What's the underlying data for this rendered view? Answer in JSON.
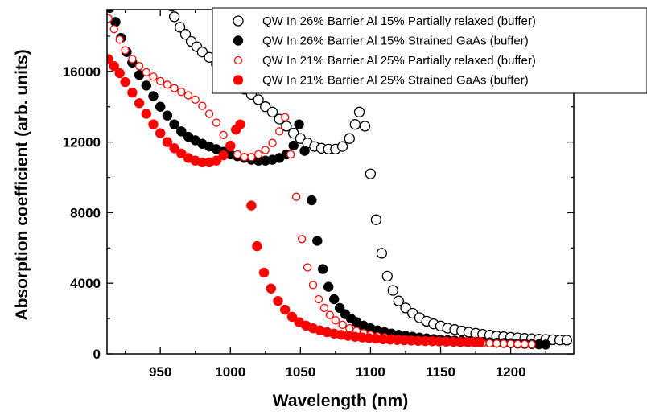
{
  "chart_data": {
    "type": "scatter",
    "title": "",
    "xlabel": "Wavelength (nm)",
    "ylabel": "Absorption coefficient (arb. units)",
    "xlim": [
      912,
      1245
    ],
    "ylim": [
      0,
      19500
    ],
    "xticks": [
      950,
      1000,
      1050,
      1100,
      1150,
      1200
    ],
    "yticks": [
      0,
      4000,
      8000,
      12000,
      16000
    ],
    "legend_position": "top-right",
    "series": [
      {
        "name": "QW In 26% Barrier Al 15% Partially relaxed (buffer)",
        "color": "#000000",
        "marker": "open-circle",
        "points": [
          [
            958,
            19700
          ],
          [
            960,
            19100
          ],
          [
            964,
            18500
          ],
          [
            968,
            18100
          ],
          [
            972,
            17700
          ],
          [
            976,
            17400
          ],
          [
            980,
            17100
          ],
          [
            985,
            16800
          ],
          [
            990,
            16400
          ],
          [
            995,
            16100
          ],
          [
            1000,
            15700
          ],
          [
            1005,
            15400
          ],
          [
            1010,
            15000
          ],
          [
            1015,
            14700
          ],
          [
            1020,
            14400
          ],
          [
            1025,
            14000
          ],
          [
            1030,
            13700
          ],
          [
            1035,
            13300
          ],
          [
            1040,
            12900
          ],
          [
            1045,
            12500
          ],
          [
            1050,
            12200
          ],
          [
            1055,
            11950
          ],
          [
            1060,
            11750
          ],
          [
            1065,
            11650
          ],
          [
            1070,
            11600
          ],
          [
            1075,
            11600
          ],
          [
            1080,
            11750
          ],
          [
            1085,
            12200
          ],
          [
            1089,
            13000
          ],
          [
            1092,
            13700
          ],
          [
            1096,
            12900
          ],
          [
            1100,
            10200
          ],
          [
            1104,
            7600
          ],
          [
            1108,
            5700
          ],
          [
            1112,
            4400
          ],
          [
            1116,
            3600
          ],
          [
            1120,
            3000
          ],
          [
            1125,
            2600
          ],
          [
            1130,
            2300
          ],
          [
            1135,
            2050
          ],
          [
            1140,
            1850
          ],
          [
            1145,
            1700
          ],
          [
            1150,
            1580
          ],
          [
            1155,
            1460
          ],
          [
            1160,
            1380
          ],
          [
            1165,
            1300
          ],
          [
            1170,
            1230
          ],
          [
            1175,
            1170
          ],
          [
            1180,
            1110
          ],
          [
            1185,
            1060
          ],
          [
            1190,
            1010
          ],
          [
            1195,
            970
          ],
          [
            1200,
            940
          ],
          [
            1205,
            910
          ],
          [
            1210,
            880
          ],
          [
            1215,
            860
          ],
          [
            1220,
            840
          ],
          [
            1225,
            820
          ],
          [
            1230,
            800
          ],
          [
            1235,
            790
          ],
          [
            1240,
            780
          ]
        ]
      },
      {
        "name": "QW In 26% Barrier Al 15% Strained GaAs (buffer)",
        "color": "#000000",
        "marker": "filled-circle",
        "points": [
          [
            914,
            19600
          ],
          [
            918,
            18800
          ],
          [
            922,
            17900
          ],
          [
            926,
            17100
          ],
          [
            930,
            16500
          ],
          [
            935,
            15800
          ],
          [
            940,
            15200
          ],
          [
            945,
            14600
          ],
          [
            950,
            14000
          ],
          [
            955,
            13500
          ],
          [
            960,
            13000
          ],
          [
            965,
            12600
          ],
          [
            970,
            12300
          ],
          [
            975,
            12100
          ],
          [
            980,
            11900
          ],
          [
            985,
            11750
          ],
          [
            990,
            11600
          ],
          [
            995,
            11450
          ],
          [
            1000,
            11300
          ],
          [
            1005,
            11200
          ],
          [
            1010,
            11100
          ],
          [
            1015,
            11000
          ],
          [
            1020,
            10950
          ],
          [
            1025,
            10950
          ],
          [
            1030,
            11000
          ],
          [
            1035,
            11100
          ],
          [
            1040,
            11300
          ],
          [
            1045,
            11800
          ],
          [
            1049,
            13000
          ],
          [
            1053,
            11500
          ],
          [
            1058,
            8700
          ],
          [
            1062,
            6400
          ],
          [
            1066,
            4800
          ],
          [
            1070,
            3800
          ],
          [
            1074,
            3100
          ],
          [
            1078,
            2600
          ],
          [
            1082,
            2250
          ],
          [
            1086,
            2000
          ],
          [
            1090,
            1800
          ],
          [
            1095,
            1600
          ],
          [
            1100,
            1450
          ],
          [
            1105,
            1330
          ],
          [
            1110,
            1230
          ],
          [
            1115,
            1150
          ],
          [
            1120,
            1080
          ],
          [
            1125,
            1020
          ],
          [
            1130,
            970
          ],
          [
            1135,
            920
          ],
          [
            1140,
            880
          ],
          [
            1145,
            840
          ],
          [
            1150,
            810
          ],
          [
            1155,
            780
          ],
          [
            1160,
            750
          ],
          [
            1165,
            730
          ],
          [
            1170,
            710
          ],
          [
            1175,
            690
          ],
          [
            1180,
            670
          ],
          [
            1185,
            650
          ],
          [
            1190,
            630
          ],
          [
            1195,
            615
          ],
          [
            1200,
            600
          ],
          [
            1205,
            585
          ],
          [
            1210,
            570
          ],
          [
            1215,
            555
          ],
          [
            1220,
            540
          ],
          [
            1225,
            530
          ]
        ]
      },
      {
        "name": "QW In 21% Barrier Al 25% Partially relaxed (buffer)",
        "color": "#ff0000",
        "marker": "open-circle",
        "points": [
          [
            913,
            19000
          ],
          [
            917,
            18400
          ],
          [
            921,
            17800
          ],
          [
            925,
            17200
          ],
          [
            930,
            16700
          ],
          [
            935,
            16300
          ],
          [
            940,
            15950
          ],
          [
            945,
            15700
          ],
          [
            950,
            15450
          ],
          [
            955,
            15250
          ],
          [
            960,
            15050
          ],
          [
            965,
            14850
          ],
          [
            970,
            14650
          ],
          [
            975,
            14400
          ],
          [
            980,
            14050
          ],
          [
            985,
            13600
          ],
          [
            990,
            13100
          ],
          [
            995,
            12400
          ],
          [
            1000,
            11700
          ],
          [
            1005,
            11300
          ],
          [
            1010,
            11150
          ],
          [
            1015,
            11150
          ],
          [
            1020,
            11300
          ],
          [
            1025,
            11550
          ],
          [
            1030,
            11950
          ],
          [
            1035,
            12600
          ],
          [
            1039,
            13400
          ],
          [
            1043,
            11300
          ],
          [
            1047,
            8900
          ],
          [
            1051,
            6500
          ],
          [
            1055,
            4900
          ],
          [
            1059,
            3900
          ],
          [
            1063,
            3100
          ],
          [
            1067,
            2600
          ],
          [
            1071,
            2200
          ],
          [
            1075,
            1900
          ],
          [
            1080,
            1650
          ],
          [
            1085,
            1450
          ],
          [
            1090,
            1300
          ],
          [
            1095,
            1180
          ],
          [
            1100,
            1080
          ],
          [
            1105,
            1000
          ],
          [
            1110,
            940
          ],
          [
            1115,
            890
          ],
          [
            1120,
            850
          ],
          [
            1125,
            810
          ],
          [
            1130,
            780
          ],
          [
            1135,
            750
          ],
          [
            1140,
            730
          ],
          [
            1145,
            710
          ],
          [
            1150,
            690
          ],
          [
            1155,
            675
          ],
          [
            1160,
            660
          ],
          [
            1165,
            645
          ],
          [
            1170,
            630
          ],
          [
            1175,
            620
          ],
          [
            1180,
            610
          ],
          [
            1185,
            600
          ],
          [
            1190,
            590
          ],
          [
            1195,
            580
          ],
          [
            1200,
            570
          ],
          [
            1205,
            560
          ],
          [
            1210,
            550
          ],
          [
            1215,
            540
          ]
        ]
      },
      {
        "name": "QW In 21% Barrier Al 25% Strained GaAs (buffer)",
        "color": "#ff0000",
        "marker": "filled-circle",
        "points": [
          [
            913,
            16700
          ],
          [
            917,
            16300
          ],
          [
            921,
            15900
          ],
          [
            925,
            15400
          ],
          [
            930,
            14800
          ],
          [
            935,
            14200
          ],
          [
            940,
            13600
          ],
          [
            945,
            13000
          ],
          [
            950,
            12500
          ],
          [
            955,
            12000
          ],
          [
            960,
            11650
          ],
          [
            965,
            11350
          ],
          [
            970,
            11100
          ],
          [
            975,
            10950
          ],
          [
            980,
            10850
          ],
          [
            985,
            10850
          ],
          [
            990,
            10950
          ],
          [
            995,
            11250
          ],
          [
            1000,
            11800
          ],
          [
            1004,
            12700
          ],
          [
            1007,
            13000
          ],
          [
            1015,
            8400
          ],
          [
            1019,
            6100
          ],
          [
            1024,
            4600
          ],
          [
            1029,
            3700
          ],
          [
            1034,
            3000
          ],
          [
            1039,
            2500
          ],
          [
            1044,
            2100
          ],
          [
            1049,
            1800
          ],
          [
            1054,
            1600
          ],
          [
            1059,
            1450
          ],
          [
            1064,
            1330
          ],
          [
            1069,
            1230
          ],
          [
            1074,
            1150
          ],
          [
            1079,
            1080
          ],
          [
            1084,
            1020
          ],
          [
            1089,
            970
          ],
          [
            1094,
            930
          ],
          [
            1099,
            890
          ],
          [
            1104,
            860
          ],
          [
            1109,
            830
          ],
          [
            1114,
            810
          ],
          [
            1119,
            790
          ],
          [
            1124,
            770
          ],
          [
            1129,
            755
          ],
          [
            1134,
            740
          ],
          [
            1139,
            725
          ],
          [
            1144,
            715
          ],
          [
            1149,
            705
          ],
          [
            1154,
            695
          ],
          [
            1159,
            690
          ],
          [
            1164,
            685
          ],
          [
            1169,
            680
          ],
          [
            1174,
            675
          ],
          [
            1178,
            670
          ]
        ]
      }
    ]
  }
}
